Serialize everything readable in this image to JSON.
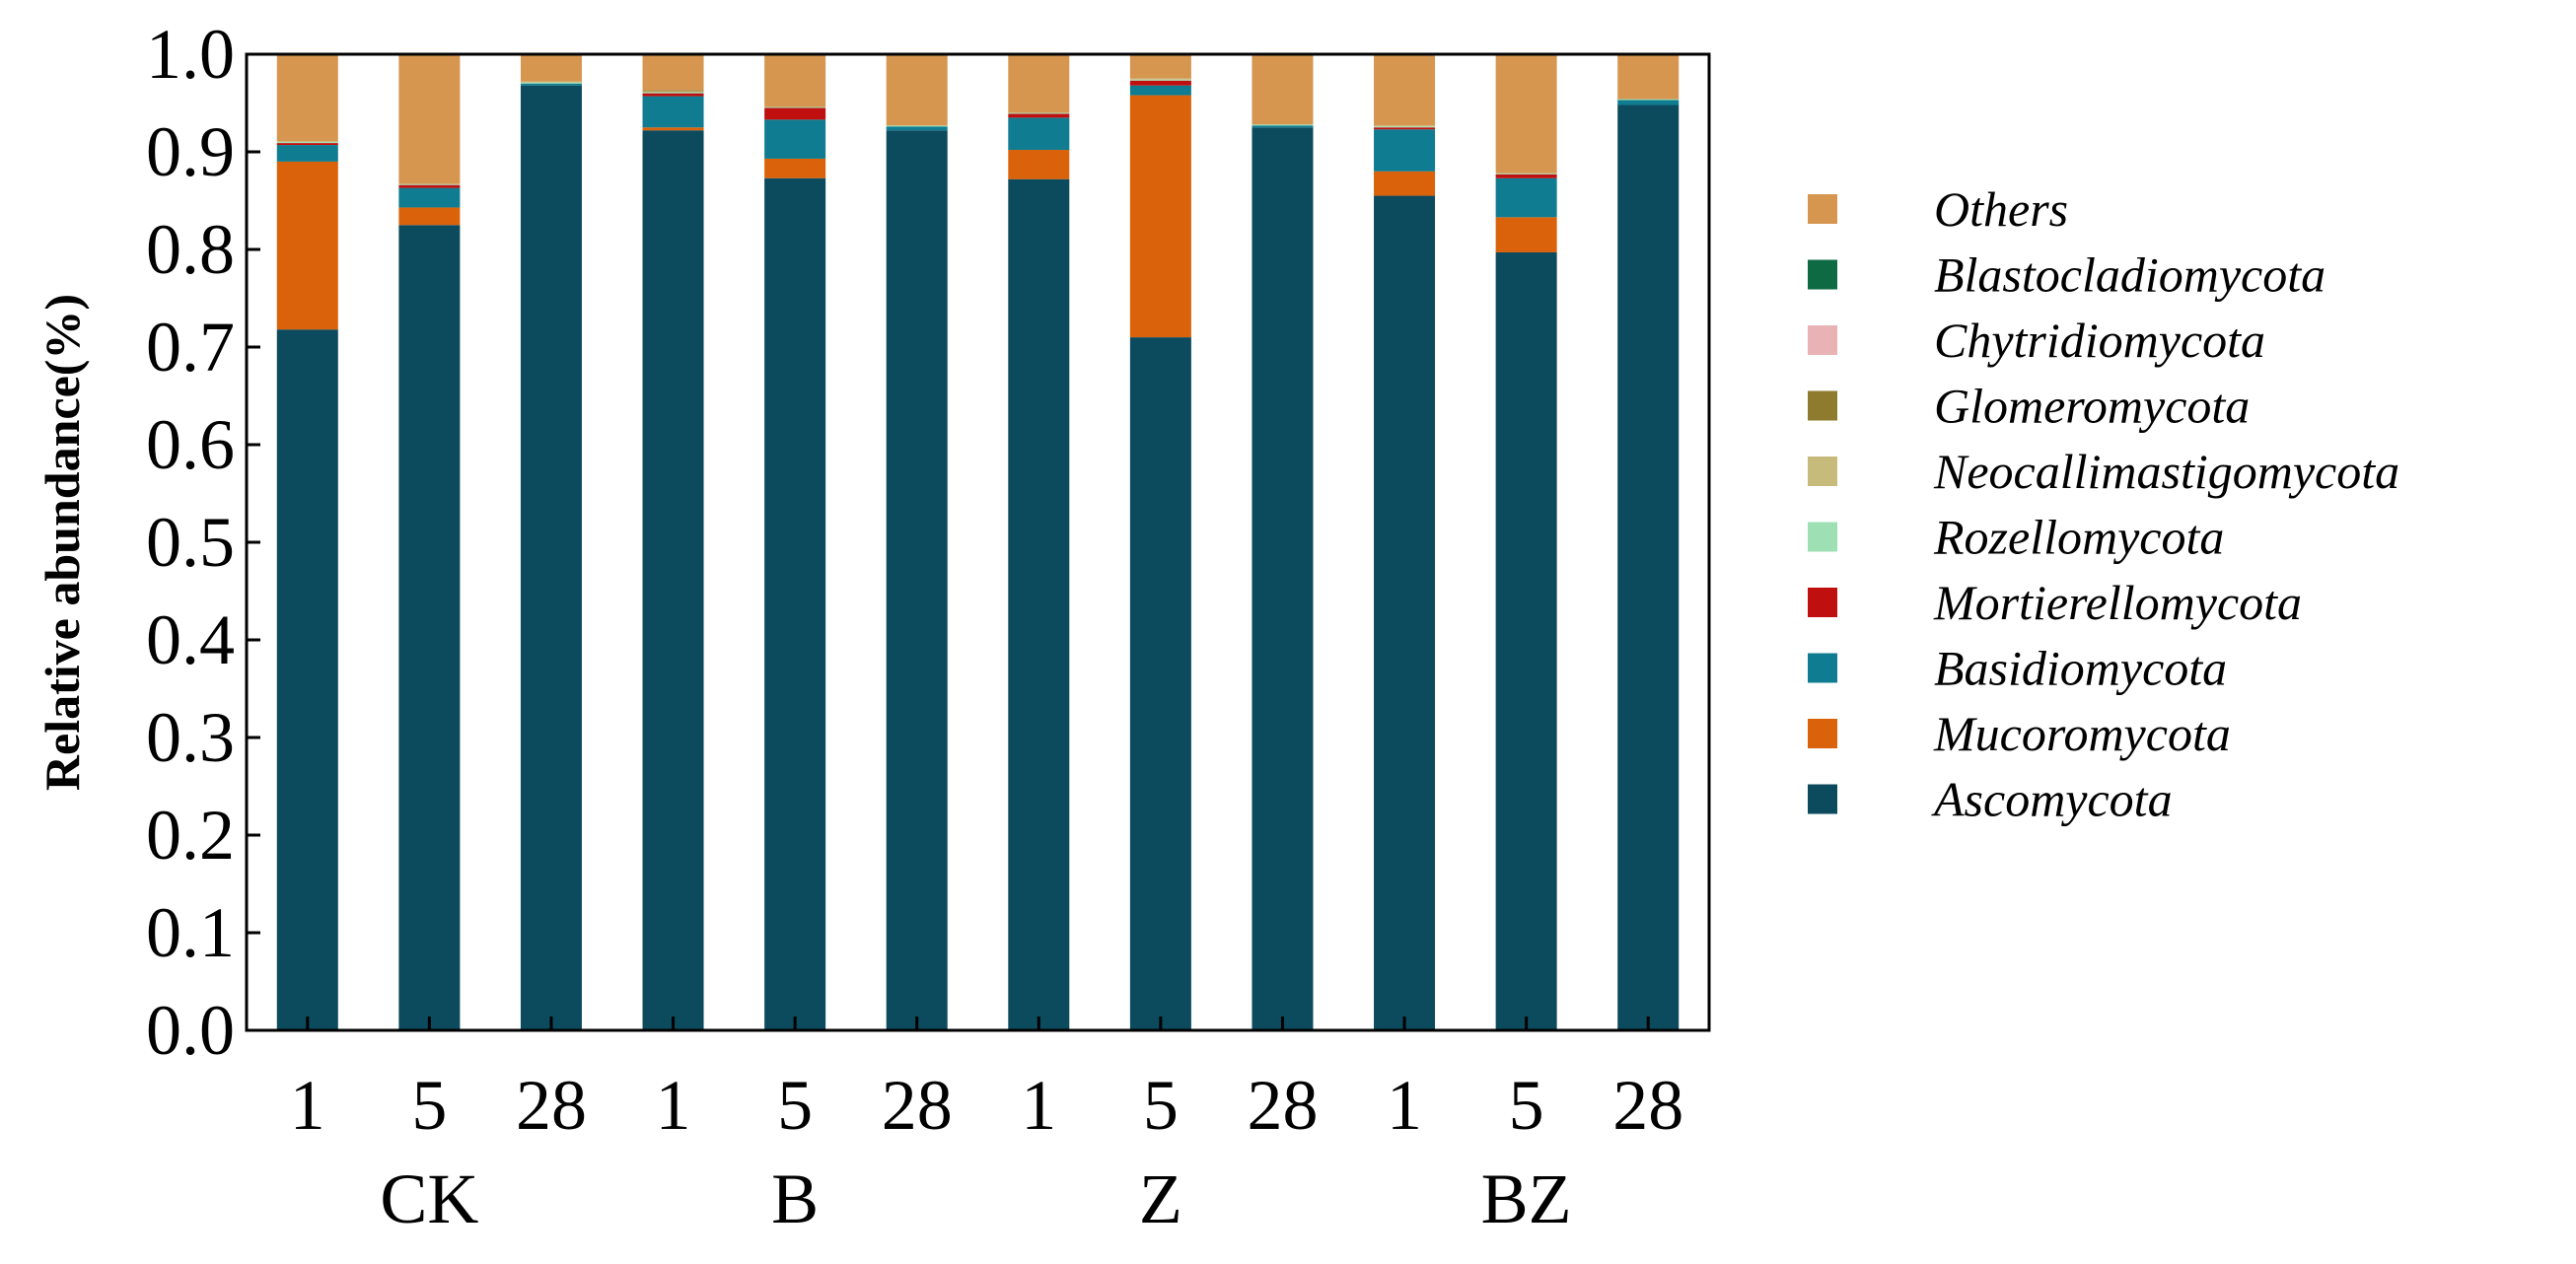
{
  "chart_data": {
    "type": "bar",
    "stacked": true,
    "title": "",
    "xlabel": "",
    "ylabel": "Relative abundance(%)",
    "ylim": [
      0,
      1.0
    ],
    "yticks": [
      "0.0",
      "0.1",
      "0.2",
      "0.3",
      "0.4",
      "0.5",
      "0.6",
      "0.7",
      "0.8",
      "0.9",
      "1.0"
    ],
    "grid": false,
    "legend_position": "right",
    "categories": [
      "1",
      "5",
      "28",
      "1",
      "5",
      "28",
      "1",
      "5",
      "28",
      "1",
      "5",
      "28"
    ],
    "groups": [
      {
        "label": "CK",
        "categories": [
          "1",
          "5",
          "28"
        ]
      },
      {
        "label": "B",
        "categories": [
          "1",
          "5",
          "28"
        ]
      },
      {
        "label": "Z",
        "categories": [
          "1",
          "5",
          "28"
        ]
      },
      {
        "label": "BZ",
        "categories": [
          "1",
          "5",
          "28"
        ]
      }
    ],
    "series": [
      {
        "name": "Ascomycota",
        "color": "#0c4a5e",
        "values": [
          0.718,
          0.825,
          0.968,
          0.922,
          0.873,
          0.922,
          0.872,
          0.71,
          0.925,
          0.855,
          0.797,
          0.948
        ]
      },
      {
        "name": "Mucoromycota",
        "color": "#d9620b",
        "values": [
          0.172,
          0.018,
          0.0,
          0.003,
          0.02,
          0.0,
          0.03,
          0.248,
          0.0,
          0.025,
          0.036,
          0.0
        ]
      },
      {
        "name": "Basidiomycota",
        "color": "#0f7c91",
        "values": [
          0.017,
          0.02,
          0.002,
          0.032,
          0.04,
          0.004,
          0.033,
          0.01,
          0.002,
          0.043,
          0.04,
          0.005
        ]
      },
      {
        "name": "Mortierellomycota",
        "color": "#c00f0f",
        "values": [
          0.002,
          0.003,
          0.0,
          0.003,
          0.012,
          0.0,
          0.004,
          0.005,
          0.0,
          0.002,
          0.004,
          0.0
        ]
      },
      {
        "name": "Rozellomycota",
        "color": "#9ee0b4",
        "values": [
          0.001,
          0.001,
          0.001,
          0.001,
          0.001,
          0.001,
          0.001,
          0.001,
          0.001,
          0.001,
          0.001,
          0.001
        ]
      },
      {
        "name": "Neocallimastigomycota",
        "color": "#c7bb7c",
        "values": [
          0.001,
          0.0,
          0.001,
          0.001,
          0.0,
          0.0,
          0.0,
          0.001,
          0.0,
          0.001,
          0.0,
          0.0
        ]
      },
      {
        "name": "Glomeromycota",
        "color": "#8e7b2e",
        "values": [
          0.0,
          0.0,
          0.0,
          0.001,
          0.0,
          0.0,
          0.0,
          0.0,
          0.0,
          0.0,
          0.0,
          0.0
        ]
      },
      {
        "name": "Chytridiomycota",
        "color": "#e9b3b6",
        "values": [
          0.0,
          0.0,
          0.0,
          0.0,
          0.0,
          0.0,
          0.0,
          0.0,
          0.0,
          0.0,
          0.0,
          0.0
        ]
      },
      {
        "name": "Blastocladiomycota",
        "color": "#0e6a43",
        "values": [
          0.0,
          0.0,
          0.0,
          0.0,
          0.0,
          0.0,
          0.0,
          0.0,
          0.0,
          0.0,
          0.0,
          0.0
        ]
      },
      {
        "name": "Others",
        "color": "#d6964f",
        "values": [
          0.089,
          0.133,
          0.028,
          0.037,
          0.054,
          0.073,
          0.06,
          0.025,
          0.072,
          0.073,
          0.122,
          0.046
        ]
      }
    ]
  }
}
